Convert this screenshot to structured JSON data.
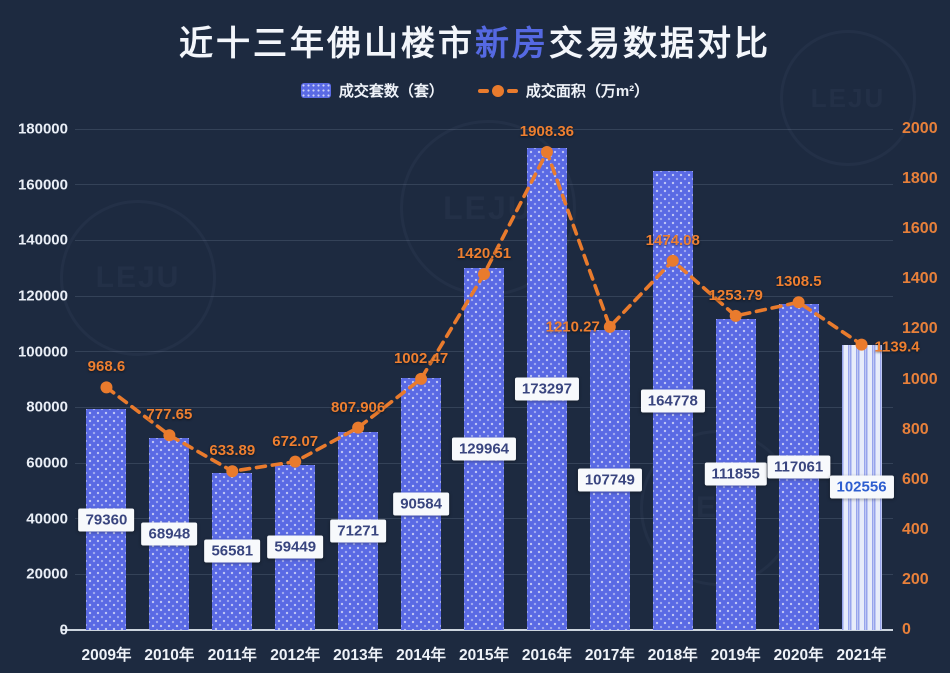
{
  "title": {
    "prefix": "近十三年佛山楼市",
    "highlight": "新房",
    "suffix": "交易数据对比"
  },
  "legend": {
    "bar_label": "成交套数（套）",
    "line_label": "成交面积（万m²）"
  },
  "colors": {
    "background": "#1d2a40",
    "bar": "#5a6ae4",
    "bar_forecast_bg": "#e7ecfa",
    "bar_forecast_stripe": "#97a4ec",
    "line": "#e97b2d",
    "right_axis": "#e8803a",
    "text": "#eef2f8",
    "title_highlight": "#5569e2",
    "bar_label_text": "#39457f",
    "bar_label_text_last": "#2e5ed0"
  },
  "chart_data": {
    "type": "bar+line",
    "title": "近十三年佛山楼市新房交易数据对比",
    "categories": [
      "2009年",
      "2010年",
      "2011年",
      "2012年",
      "2013年",
      "2014年",
      "2015年",
      "2016年",
      "2017年",
      "2018年",
      "2019年",
      "2020年",
      "2021年"
    ],
    "series": [
      {
        "name": "成交套数（套）",
        "type": "bar",
        "axis": "left",
        "values": [
          79360,
          68948,
          56581,
          59449,
          71271,
          90584,
          129964,
          173297,
          107749,
          164778,
          111855,
          117061,
          102556
        ]
      },
      {
        "name": "成交面积（万m²）",
        "type": "line",
        "axis": "right",
        "values": [
          968.6,
          777.65,
          633.89,
          672.07,
          807.906,
          1002.47,
          1420.51,
          1908.36,
          1210.27,
          1474.08,
          1253.79,
          1308.5,
          1139.4
        ]
      }
    ],
    "left_axis": {
      "min": 0,
      "max": 180000,
      "step": 20000
    },
    "right_axis": {
      "min": 0,
      "max": 2000,
      "step": 200
    },
    "grid": true,
    "legend_position": "top",
    "notes": "2021 bar drawn in light striped style (partial-year)"
  }
}
